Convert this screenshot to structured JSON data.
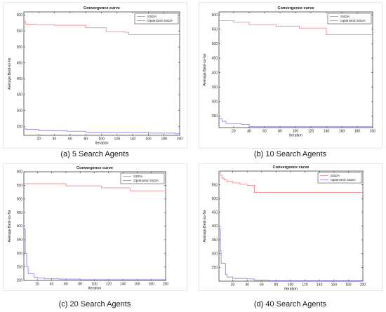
{
  "colors": {
    "ssda": "#f07a7a",
    "optimized": "#7a7af2",
    "axis": "#262626",
    "frame": "#e6e6e6"
  },
  "chart_data": [
    {
      "type": "line",
      "title": "Convergence curve",
      "xlabel": "Iteration",
      "ylabel": "Average Best-so-far",
      "xlim": [
        1,
        200
      ],
      "ylim": [
        222,
        610
      ],
      "xticks": [
        20,
        40,
        60,
        80,
        100,
        120,
        140,
        160,
        180,
        200
      ],
      "yticks": [
        250,
        300,
        350,
        400,
        450,
        500,
        550,
        600
      ],
      "legend": "top-right",
      "caption": "(a) 5 Search Agents",
      "series": [
        {
          "name": "SSDA",
          "color": "#f07a7a",
          "x": [
            1,
            3,
            5,
            15,
            40,
            80,
            106,
            130,
            135,
            200
          ],
          "y": [
            580,
            572,
            571,
            570,
            568,
            560,
            548,
            546,
            538,
            538
          ]
        },
        {
          "name": "Optimized SSDA",
          "color": "#7a7af2",
          "x": [
            1,
            4,
            20,
            40,
            55,
            80,
            160,
            195,
            200
          ],
          "y": [
            242,
            241,
            237,
            236,
            235,
            232,
            229,
            227,
            224
          ]
        }
      ]
    },
    {
      "type": "line",
      "title": "Convergence curve",
      "xlabel": "Iteration",
      "ylabel": "Average Best-so-far",
      "xlim": [
        1,
        200
      ],
      "ylim": [
        210,
        610
      ],
      "xticks": [
        20,
        40,
        60,
        80,
        100,
        120,
        140,
        160,
        180,
        200
      ],
      "yticks": [
        250,
        300,
        350,
        400,
        450,
        500,
        550,
        600
      ],
      "legend": "top-right",
      "caption": "(b) 10 Search Agents",
      "series": [
        {
          "name": "SSDA",
          "color": "#f07a7a",
          "x": [
            1,
            20,
            40,
            75,
            105,
            140,
            200
          ],
          "y": [
            580,
            574,
            566,
            561,
            554,
            531,
            531
          ]
        },
        {
          "name": "Optimized SSDA",
          "color": "#7a7af2",
          "x": [
            1,
            5,
            10,
            30,
            40,
            200
          ],
          "y": [
            240,
            232,
            224,
            221,
            213,
            213
          ]
        }
      ]
    },
    {
      "type": "line",
      "title": "Convergence curve",
      "xlabel": "Iteration",
      "ylabel": "Average Best-so-far",
      "xlim": [
        1,
        200
      ],
      "ylim": [
        200,
        600
      ],
      "xticks": [
        20,
        40,
        60,
        80,
        100,
        120,
        140,
        160,
        180,
        200
      ],
      "yticks": [
        200,
        250,
        300,
        350,
        400,
        450,
        500,
        550,
        600
      ],
      "legend": "top-right",
      "caption": "(c) 20 Search Agents",
      "series": [
        {
          "name": "SSDA",
          "color": "#f07a7a",
          "x": [
            1,
            5,
            60,
            110,
            150,
            200
          ],
          "y": [
            556,
            556,
            548,
            541,
            530,
            527
          ]
        },
        {
          "name": "Optimized SSDA",
          "color": "#7a7af2",
          "x": [
            1,
            3,
            5,
            7,
            15,
            20,
            30,
            50,
            80,
            200
          ],
          "y": [
            390,
            300,
            250,
            225,
            212,
            209,
            206,
            205,
            203,
            203
          ]
        }
      ]
    },
    {
      "type": "line",
      "title": "Convergence curve",
      "xlabel": "Iteration",
      "ylabel": "Average Best-so-far",
      "xlim": [
        1,
        200
      ],
      "ylim": [
        200,
        600
      ],
      "xticks": [
        20,
        40,
        60,
        80,
        100,
        120,
        140,
        160,
        180,
        200
      ],
      "yticks": [
        250,
        300,
        350,
        400,
        450,
        500,
        550
      ],
      "legend": "top-right",
      "caption": "(d) 40 Search Agents",
      "series": [
        {
          "name": "SSDA",
          "color": "#f07a7a",
          "x": [
            1,
            3,
            5,
            8,
            12,
            20,
            30,
            40,
            50,
            200
          ],
          "y": [
            600,
            585,
            575,
            568,
            562,
            557,
            552,
            548,
            522,
            522
          ]
        },
        {
          "name": "Optimized SSDA",
          "color": "#7a7af2",
          "x": [
            1,
            3,
            4,
            6,
            10,
            12,
            20,
            40,
            50,
            70,
            200
          ],
          "y": [
            390,
            310,
            265,
            265,
            225,
            215,
            210,
            208,
            204,
            202,
            202
          ]
        }
      ]
    }
  ]
}
